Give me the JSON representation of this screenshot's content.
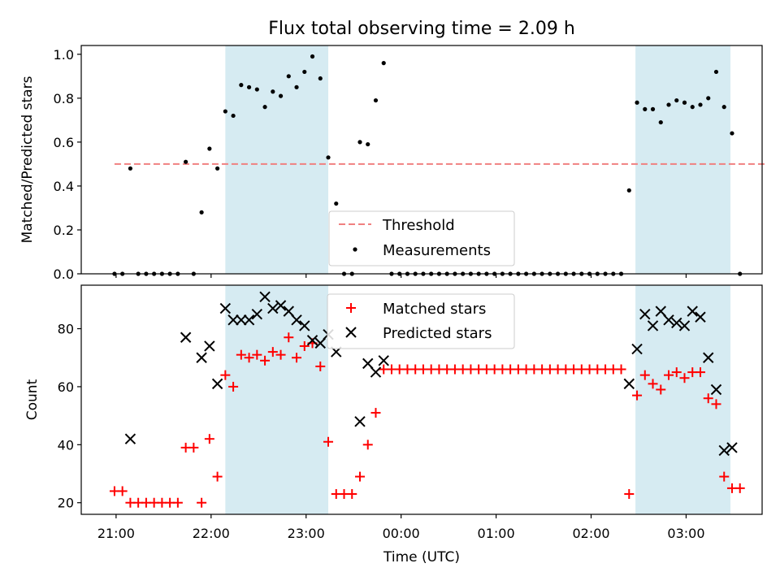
{
  "chart_data": [
    {
      "type": "scatter",
      "title": "Flux total observing time = 2.09 h",
      "ylabel": "Matched/Predicted stars",
      "xlabel": "",
      "xlim": [
        "20:38",
        "03:48"
      ],
      "ylim": [
        0,
        1.04
      ],
      "x_ticks": [
        "21:00",
        "22:00",
        "23:00",
        "00:00",
        "01:00",
        "02:00",
        "03:00"
      ],
      "y_ticks": [
        "0.0",
        "0.2",
        "0.4",
        "0.6",
        "0.8",
        "1.0"
      ],
      "shaded_ranges": [
        [
          "22:09",
          "23:14"
        ],
        [
          "02:28",
          "03:28"
        ]
      ],
      "shade_color": "#add8e6",
      "threshold": {
        "name": "Threshold",
        "value": 0.5,
        "x_range": [
          "20:59",
          "03:51"
        ],
        "color": "#f08080",
        "style": "dashed"
      },
      "legend": {
        "position": "bottom-center",
        "entries": [
          "Threshold",
          "Measurements"
        ]
      },
      "series": [
        {
          "name": "Measurements",
          "marker": "dot",
          "color": "#000000",
          "points": [
            {
              "x": "20:59",
              "y": 0
            },
            {
              "x": "21:04",
              "y": 0
            },
            {
              "x": "21:09",
              "y": 0.48
            },
            {
              "x": "21:14",
              "y": 0
            },
            {
              "x": "21:19",
              "y": 0
            },
            {
              "x": "21:24",
              "y": 0
            },
            {
              "x": "21:29",
              "y": 0
            },
            {
              "x": "21:34",
              "y": 0
            },
            {
              "x": "21:39",
              "y": 0
            },
            {
              "x": "21:44",
              "y": 0.51
            },
            {
              "x": "21:49",
              "y": 0
            },
            {
              "x": "21:54",
              "y": 0.28
            },
            {
              "x": "21:59",
              "y": 0.57
            },
            {
              "x": "22:04",
              "y": 0.48
            },
            {
              "x": "22:09",
              "y": 0.74
            },
            {
              "x": "22:14",
              "y": 0.72
            },
            {
              "x": "22:19",
              "y": 0.86
            },
            {
              "x": "22:24",
              "y": 0.85
            },
            {
              "x": "22:29",
              "y": 0.84
            },
            {
              "x": "22:34",
              "y": 0.76
            },
            {
              "x": "22:39",
              "y": 0.83
            },
            {
              "x": "22:44",
              "y": 0.81
            },
            {
              "x": "22:49",
              "y": 0.9
            },
            {
              "x": "22:54",
              "y": 0.85
            },
            {
              "x": "22:59",
              "y": 0.92
            },
            {
              "x": "23:04",
              "y": 0.99
            },
            {
              "x": "23:09",
              "y": 0.89
            },
            {
              "x": "23:14",
              "y": 0.53
            },
            {
              "x": "23:19",
              "y": 0.32
            },
            {
              "x": "23:24",
              "y": 0
            },
            {
              "x": "23:29",
              "y": 0
            },
            {
              "x": "23:34",
              "y": 0.6
            },
            {
              "x": "23:39",
              "y": 0.59
            },
            {
              "x": "23:44",
              "y": 0.79
            },
            {
              "x": "23:49",
              "y": 0.96
            },
            {
              "x": "23:54",
              "y": 0
            },
            {
              "x": "23:59",
              "y": 0
            },
            {
              "x": "00:04",
              "y": 0
            },
            {
              "x": "00:09",
              "y": 0
            },
            {
              "x": "00:14",
              "y": 0
            },
            {
              "x": "00:19",
              "y": 0
            },
            {
              "x": "00:24",
              "y": 0
            },
            {
              "x": "00:29",
              "y": 0
            },
            {
              "x": "00:34",
              "y": 0
            },
            {
              "x": "00:39",
              "y": 0
            },
            {
              "x": "00:44",
              "y": 0
            },
            {
              "x": "00:49",
              "y": 0
            },
            {
              "x": "00:54",
              "y": 0
            },
            {
              "x": "00:59",
              "y": 0
            },
            {
              "x": "01:04",
              "y": 0
            },
            {
              "x": "01:09",
              "y": 0
            },
            {
              "x": "01:14",
              "y": 0
            },
            {
              "x": "01:19",
              "y": 0
            },
            {
              "x": "01:24",
              "y": 0
            },
            {
              "x": "01:29",
              "y": 0
            },
            {
              "x": "01:34",
              "y": 0
            },
            {
              "x": "01:39",
              "y": 0
            },
            {
              "x": "01:44",
              "y": 0
            },
            {
              "x": "01:49",
              "y": 0
            },
            {
              "x": "01:54",
              "y": 0
            },
            {
              "x": "01:59",
              "y": 0
            },
            {
              "x": "02:04",
              "y": 0
            },
            {
              "x": "02:09",
              "y": 0
            },
            {
              "x": "02:14",
              "y": 0
            },
            {
              "x": "02:19",
              "y": 0
            },
            {
              "x": "02:24",
              "y": 0.38
            },
            {
              "x": "02:29",
              "y": 0.78
            },
            {
              "x": "02:34",
              "y": 0.75
            },
            {
              "x": "02:39",
              "y": 0.75
            },
            {
              "x": "02:44",
              "y": 0.69
            },
            {
              "x": "02:49",
              "y": 0.77
            },
            {
              "x": "02:54",
              "y": 0.79
            },
            {
              "x": "02:59",
              "y": 0.78
            },
            {
              "x": "03:04",
              "y": 0.76
            },
            {
              "x": "03:09",
              "y": 0.77
            },
            {
              "x": "03:14",
              "y": 0.8
            },
            {
              "x": "03:19",
              "y": 0.92
            },
            {
              "x": "03:24",
              "y": 0.76
            },
            {
              "x": "03:29",
              "y": 0.64
            },
            {
              "x": "03:34",
              "y": 0
            }
          ]
        }
      ]
    },
    {
      "type": "scatter",
      "title": "",
      "ylabel": "Count",
      "xlabel": "Time (UTC)",
      "xlim": [
        "20:38",
        "03:48"
      ],
      "ylim": [
        16,
        95
      ],
      "x_ticks": [
        "21:00",
        "22:00",
        "23:00",
        "00:00",
        "01:00",
        "02:00",
        "03:00"
      ],
      "y_ticks": [
        "20",
        "40",
        "60",
        "80"
      ],
      "shaded_ranges": [
        [
          "22:09",
          "23:14"
        ],
        [
          "02:28",
          "03:28"
        ]
      ],
      "shade_color": "#add8e6",
      "legend": {
        "position": "top-center",
        "entries": [
          "Matched stars",
          "Predicted stars"
        ]
      },
      "series": [
        {
          "name": "Matched stars",
          "marker": "plus",
          "color": "#ff0000",
          "points": [
            {
              "x": "20:59",
              "y": 24
            },
            {
              "x": "21:04",
              "y": 24
            },
            {
              "x": "21:09",
              "y": 20
            },
            {
              "x": "21:14",
              "y": 20
            },
            {
              "x": "21:19",
              "y": 20
            },
            {
              "x": "21:24",
              "y": 20
            },
            {
              "x": "21:29",
              "y": 20
            },
            {
              "x": "21:34",
              "y": 20
            },
            {
              "x": "21:39",
              "y": 20
            },
            {
              "x": "21:44",
              "y": 39
            },
            {
              "x": "21:49",
              "y": 39
            },
            {
              "x": "21:54",
              "y": 20
            },
            {
              "x": "21:59",
              "y": 42
            },
            {
              "x": "22:04",
              "y": 29
            },
            {
              "x": "22:09",
              "y": 64
            },
            {
              "x": "22:14",
              "y": 60
            },
            {
              "x": "22:19",
              "y": 71
            },
            {
              "x": "22:24",
              "y": 70
            },
            {
              "x": "22:29",
              "y": 71
            },
            {
              "x": "22:34",
              "y": 69
            },
            {
              "x": "22:39",
              "y": 72
            },
            {
              "x": "22:44",
              "y": 71
            },
            {
              "x": "22:49",
              "y": 77
            },
            {
              "x": "22:54",
              "y": 70
            },
            {
              "x": "22:59",
              "y": 74
            },
            {
              "x": "23:04",
              "y": 75
            },
            {
              "x": "23:09",
              "y": 67
            },
            {
              "x": "23:14",
              "y": 41
            },
            {
              "x": "23:19",
              "y": 23
            },
            {
              "x": "23:24",
              "y": 23
            },
            {
              "x": "23:29",
              "y": 23
            },
            {
              "x": "23:34",
              "y": 29
            },
            {
              "x": "23:39",
              "y": 40
            },
            {
              "x": "23:44",
              "y": 51
            },
            {
              "x": "23:49",
              "y": 66
            },
            {
              "x": "23:54",
              "y": 66
            },
            {
              "x": "23:59",
              "y": 66
            },
            {
              "x": "00:04",
              "y": 66
            },
            {
              "x": "00:09",
              "y": 66
            },
            {
              "x": "00:14",
              "y": 66
            },
            {
              "x": "00:19",
              "y": 66
            },
            {
              "x": "00:24",
              "y": 66
            },
            {
              "x": "00:29",
              "y": 66
            },
            {
              "x": "00:34",
              "y": 66
            },
            {
              "x": "00:39",
              "y": 66
            },
            {
              "x": "00:44",
              "y": 66
            },
            {
              "x": "00:49",
              "y": 66
            },
            {
              "x": "00:54",
              "y": 66
            },
            {
              "x": "00:59",
              "y": 66
            },
            {
              "x": "01:04",
              "y": 66
            },
            {
              "x": "01:09",
              "y": 66
            },
            {
              "x": "01:14",
              "y": 66
            },
            {
              "x": "01:19",
              "y": 66
            },
            {
              "x": "01:24",
              "y": 66
            },
            {
              "x": "01:29",
              "y": 66
            },
            {
              "x": "01:34",
              "y": 66
            },
            {
              "x": "01:39",
              "y": 66
            },
            {
              "x": "01:44",
              "y": 66
            },
            {
              "x": "01:49",
              "y": 66
            },
            {
              "x": "01:54",
              "y": 66
            },
            {
              "x": "01:59",
              "y": 66
            },
            {
              "x": "02:04",
              "y": 66
            },
            {
              "x": "02:09",
              "y": 66
            },
            {
              "x": "02:14",
              "y": 66
            },
            {
              "x": "02:19",
              "y": 66
            },
            {
              "x": "02:24",
              "y": 23
            },
            {
              "x": "02:29",
              "y": 57
            },
            {
              "x": "02:34",
              "y": 64
            },
            {
              "x": "02:39",
              "y": 61
            },
            {
              "x": "02:44",
              "y": 59
            },
            {
              "x": "02:49",
              "y": 64
            },
            {
              "x": "02:54",
              "y": 65
            },
            {
              "x": "02:59",
              "y": 63
            },
            {
              "x": "03:04",
              "y": 65
            },
            {
              "x": "03:09",
              "y": 65
            },
            {
              "x": "03:14",
              "y": 56
            },
            {
              "x": "03:19",
              "y": 54
            },
            {
              "x": "03:24",
              "y": 29
            },
            {
              "x": "03:29",
              "y": 25
            },
            {
              "x": "03:34",
              "y": 25
            }
          ]
        },
        {
          "name": "Predicted stars",
          "marker": "x",
          "color": "#000000",
          "points": [
            {
              "x": "21:09",
              "y": 42
            },
            {
              "x": "21:44",
              "y": 77
            },
            {
              "x": "21:54",
              "y": 70
            },
            {
              "x": "21:59",
              "y": 74
            },
            {
              "x": "22:04",
              "y": 61
            },
            {
              "x": "22:09",
              "y": 87
            },
            {
              "x": "22:14",
              "y": 83
            },
            {
              "x": "22:19",
              "y": 83
            },
            {
              "x": "22:24",
              "y": 83
            },
            {
              "x": "22:29",
              "y": 85
            },
            {
              "x": "22:34",
              "y": 91
            },
            {
              "x": "22:39",
              "y": 87
            },
            {
              "x": "22:44",
              "y": 88
            },
            {
              "x": "22:49",
              "y": 86
            },
            {
              "x": "22:54",
              "y": 83
            },
            {
              "x": "22:59",
              "y": 81
            },
            {
              "x": "23:04",
              "y": 76
            },
            {
              "x": "23:09",
              "y": 75
            },
            {
              "x": "23:14",
              "y": 78
            },
            {
              "x": "23:19",
              "y": 72
            },
            {
              "x": "23:34",
              "y": 48
            },
            {
              "x": "23:39",
              "y": 68
            },
            {
              "x": "23:44",
              "y": 65
            },
            {
              "x": "23:49",
              "y": 69
            },
            {
              "x": "02:24",
              "y": 61
            },
            {
              "x": "02:29",
              "y": 73
            },
            {
              "x": "02:34",
              "y": 85
            },
            {
              "x": "02:39",
              "y": 81
            },
            {
              "x": "02:44",
              "y": 86
            },
            {
              "x": "02:49",
              "y": 83
            },
            {
              "x": "02:54",
              "y": 82
            },
            {
              "x": "02:59",
              "y": 81
            },
            {
              "x": "03:04",
              "y": 86
            },
            {
              "x": "03:09",
              "y": 84
            },
            {
              "x": "03:14",
              "y": 70
            },
            {
              "x": "03:19",
              "y": 59
            },
            {
              "x": "03:24",
              "y": 38
            },
            {
              "x": "03:29",
              "y": 39
            }
          ]
        }
      ]
    }
  ]
}
